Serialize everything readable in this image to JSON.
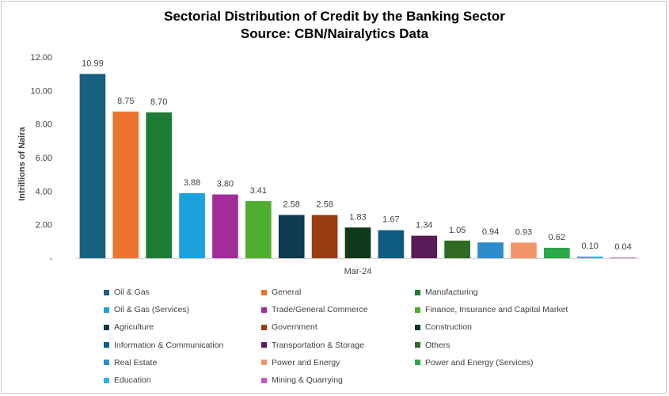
{
  "chart_data": {
    "type": "bar",
    "title": "Sectorial Distribution of Credit by the Banking Sector",
    "subtitle": "Source: CBN/Nairalytics Data",
    "xlabel": "Mar-24",
    "ylabel": "Intrillions of Naira",
    "ylim": [
      0,
      12
    ],
    "yticks": [
      "-",
      "2.00",
      "4.00",
      "6.00",
      "8.00",
      "10.00",
      "12.00"
    ],
    "grid": false,
    "legend_position": "bottom",
    "series": [
      {
        "name": "Oil & Gas",
        "value": 10.99,
        "label": "10.99",
        "color": "#17607f"
      },
      {
        "name": "General",
        "value": 8.75,
        "label": "8.75",
        "color": "#ed7330"
      },
      {
        "name": "Manufacturing",
        "value": 8.7,
        "label": "8.70",
        "color": "#1e7b34"
      },
      {
        "name": "Oil & Gas (Services)",
        "value": 3.88,
        "label": "3.88",
        "color": "#1ca3dc"
      },
      {
        "name": "Trade/General Commerce",
        "value": 3.8,
        "label": "3.80",
        "color": "#a12d98"
      },
      {
        "name": "Finance, Insurance and Capital Market",
        "value": 3.41,
        "label": "3.41",
        "color": "#4fae30"
      },
      {
        "name": "Agriculture",
        "value": 2.58,
        "label": "2.58",
        "color": "#0e3a52"
      },
      {
        "name": "Government",
        "value": 2.58,
        "label": "2.58",
        "color": "#9b3d12"
      },
      {
        "name": "Construction",
        "value": 1.83,
        "label": "1.83",
        "color": "#10391a"
      },
      {
        "name": "Information & Communication",
        "value": 1.67,
        "label": "1.67",
        "color": "#0f5c80"
      },
      {
        "name": "Transportation & Storage",
        "value": 1.34,
        "label": "1.34",
        "color": "#5b1a58"
      },
      {
        "name": "Others",
        "value": 1.05,
        "label": "1.05",
        "color": "#2f6b22"
      },
      {
        "name": "Real Estate",
        "value": 0.94,
        "label": "0.94",
        "color": "#2f8ccc"
      },
      {
        "name": "Power and Energy",
        "value": 0.93,
        "label": "0.93",
        "color": "#f0946a"
      },
      {
        "name": "Power and Energy (Services)",
        "value": 0.62,
        "label": "0.62",
        "color": "#2aa84a"
      },
      {
        "name": "Education",
        "value": 0.1,
        "label": "0.10",
        "color": "#33b0e6"
      },
      {
        "name": "Mining & Quarrying",
        "value": 0.04,
        "label": "0.04",
        "color": "#c75ac0"
      }
    ]
  }
}
